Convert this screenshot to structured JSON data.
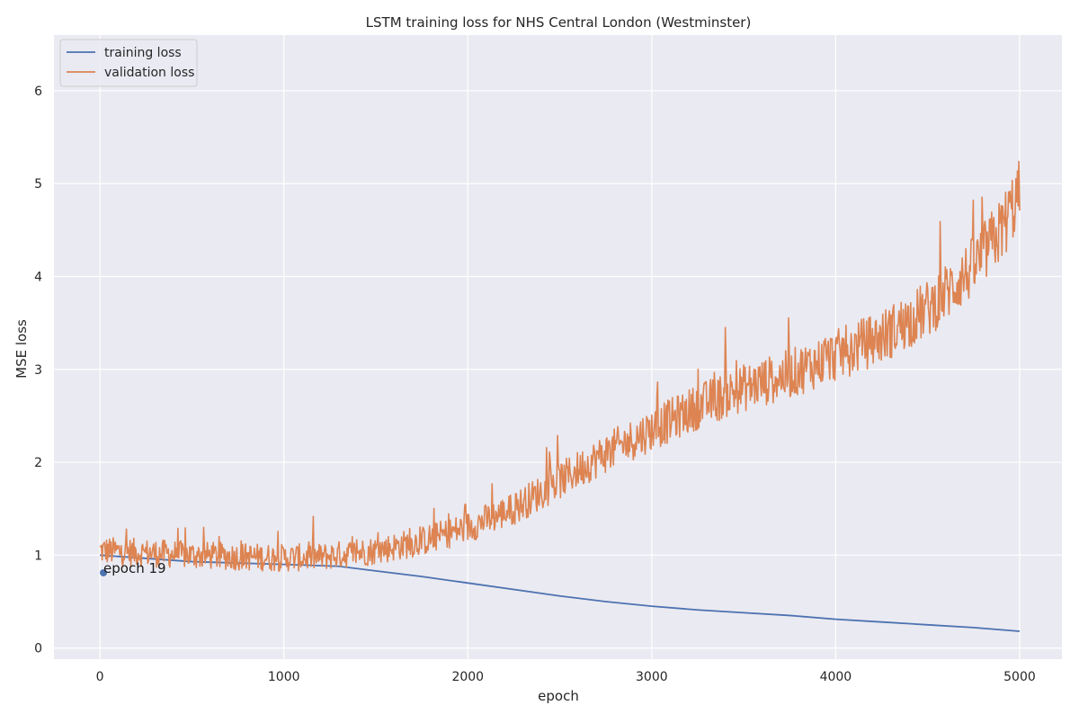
{
  "chart_data": {
    "type": "line",
    "title": "LSTM training loss for NHS Central London (Westminster)",
    "xlabel": "epoch",
    "ylabel": "MSE loss",
    "xlim": [
      -250,
      5230
    ],
    "ylim": [
      -0.12,
      6.6
    ],
    "x_ticks": [
      0,
      1000,
      2000,
      3000,
      4000,
      5000
    ],
    "y_ticks": [
      0,
      1,
      2,
      3,
      4,
      5,
      6
    ],
    "grid": true,
    "legend_position": "top-left",
    "x_range": [
      0,
      5000
    ],
    "series": [
      {
        "name": "training loss",
        "color": "#4c72b0",
        "x": [
          0,
          500,
          1000,
          1300,
          1500,
          1750,
          2000,
          2250,
          2500,
          2750,
          3000,
          3250,
          3500,
          3750,
          4000,
          4250,
          4500,
          4750,
          5000
        ],
        "y": [
          1.0,
          0.93,
          0.9,
          0.88,
          0.83,
          0.77,
          0.7,
          0.63,
          0.56,
          0.5,
          0.45,
          0.41,
          0.38,
          0.35,
          0.31,
          0.28,
          0.25,
          0.22,
          0.18
        ]
      },
      {
        "name": "validation loss",
        "color": "#dd8452",
        "x": [
          0,
          500,
          1000,
          1200,
          1500,
          1750,
          2000,
          2250,
          2500,
          2750,
          3000,
          3250,
          3500,
          3750,
          4000,
          4250,
          4500,
          4750,
          4900,
          5000
        ],
        "y": [
          1.05,
          1.0,
          0.97,
          0.98,
          1.05,
          1.15,
          1.3,
          1.5,
          1.8,
          2.1,
          2.35,
          2.6,
          2.8,
          2.95,
          3.15,
          3.35,
          3.65,
          4.1,
          4.5,
          4.9
        ]
      }
    ],
    "annotations": [
      {
        "text": "epoch 19",
        "x": 19,
        "y": 0.81,
        "color": "#4c72b0"
      }
    ]
  },
  "legend": {
    "training_label": "training loss",
    "validation_label": "validation loss"
  }
}
